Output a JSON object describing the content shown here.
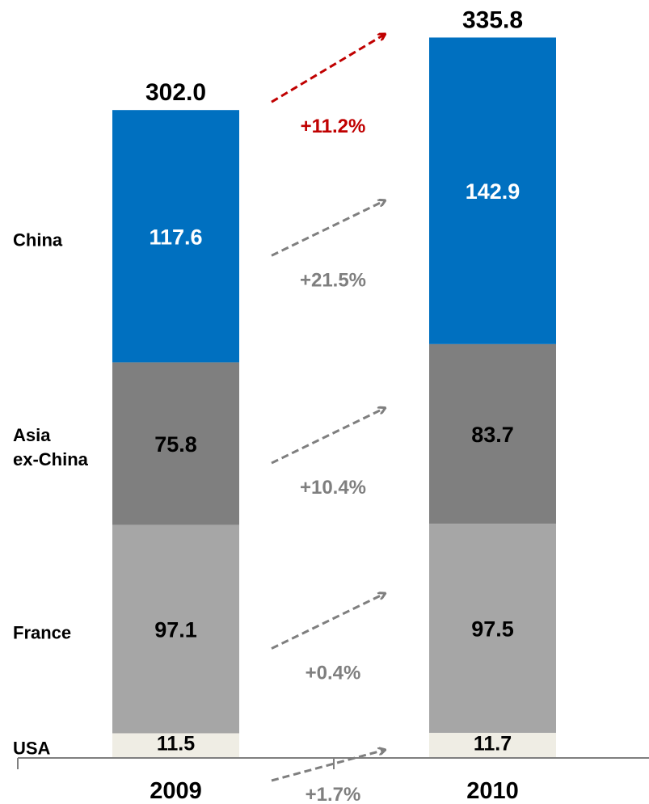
{
  "chart_data": {
    "type": "bar",
    "stacked": true,
    "title": "",
    "xlabel": "",
    "ylabel": "",
    "categories": [
      "2009",
      "2010"
    ],
    "series": [
      {
        "name": "USA",
        "values": [
          11.5,
          11.7
        ],
        "color": "#efede4",
        "label_color": "#000000"
      },
      {
        "name": "France",
        "values": [
          97.1,
          97.5
        ],
        "color": "#a6a6a6",
        "label_color": "#000000"
      },
      {
        "name": "Asia ex-China",
        "values": [
          75.8,
          83.7
        ],
        "color": "#7f7f7f",
        "label_color": "#000000"
      },
      {
        "name": "China",
        "values": [
          117.6,
          142.9
        ],
        "color": "#0070c0",
        "label_color": "#ffffff"
      }
    ],
    "series_labels": [
      {
        "series": "USA",
        "lines": [
          "USA"
        ]
      },
      {
        "series": "France",
        "lines": [
          "France"
        ]
      },
      {
        "series": "Asia ex-China",
        "lines": [
          "Asia",
          "ex-China"
        ]
      },
      {
        "series": "China",
        "lines": [
          "China"
        ]
      }
    ],
    "totals": [
      {
        "category": "2009",
        "label": "302.0",
        "value": 302.0
      },
      {
        "category": "2010",
        "label": "335.8",
        "value": 335.8
      }
    ],
    "growth": [
      {
        "target": "USA",
        "label": "+1.7%",
        "color": "#7f7f7f"
      },
      {
        "target": "France",
        "label": "+0.4%",
        "color": "#7f7f7f"
      },
      {
        "target": "Asia ex-China",
        "label": "+10.4%",
        "color": "#7f7f7f"
      },
      {
        "target": "China",
        "label": "+21.5%",
        "color": "#7f7f7f"
      },
      {
        "target": "total",
        "label": "+11.2%",
        "color": "#c00000"
      }
    ],
    "value_labels": {
      "2009": [
        "11.5",
        "97.1",
        "75.8",
        "117.6"
      ],
      "2010": [
        "11.7",
        "97.5",
        "83.7",
        "142.9"
      ]
    },
    "grid": false,
    "legend": "none"
  }
}
